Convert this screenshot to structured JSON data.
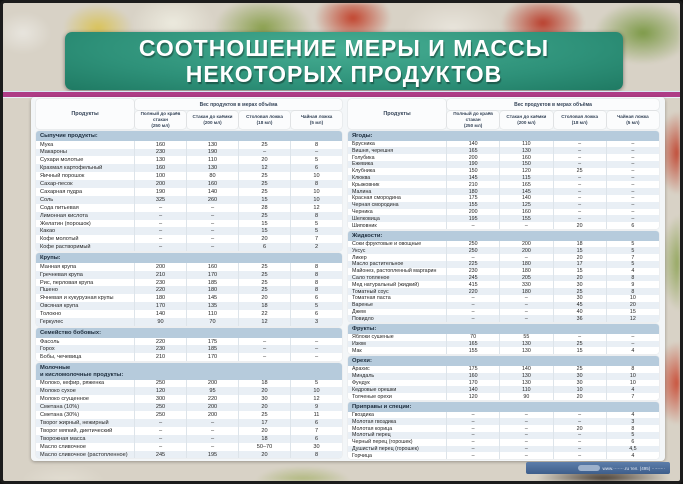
{
  "title": {
    "line1": "СООТНОШЕНИЕ МЕРЫ И МАССЫ",
    "line2": "НЕКОТОРЫХ ПРОДУКТОВ"
  },
  "header": {
    "products": "Продукты",
    "group": "Вес продуктов в мерах объёма",
    "columns": [
      {
        "label": "Полный до краёв стакан",
        "volume": "(250 мл)"
      },
      {
        "label": "Стакан до каёмки",
        "volume": "(200 мл)"
      },
      {
        "label": "Столовая ложка",
        "volume": "(18 мл)"
      },
      {
        "label": "Чайная ложка",
        "volume": "(5 мл)"
      }
    ]
  },
  "left_table": {
    "sections": [
      {
        "title": "Сыпучие продукты:",
        "rows": [
          {
            "name": "Мука",
            "values": [
              "160",
              "130",
              "25",
              "8"
            ]
          },
          {
            "name": "Макароны",
            "values": [
              "230",
              "190",
              "–",
              "–"
            ]
          },
          {
            "name": "Сухари молотые",
            "values": [
              "130",
              "110",
              "20",
              "5"
            ]
          },
          {
            "name": "Крахмал картофельный",
            "values": [
              "160",
              "130",
              "12",
              "6"
            ]
          },
          {
            "name": "Яичный порошок",
            "values": [
              "100",
              "80",
              "25",
              "10"
            ]
          },
          {
            "name": "Сахар-песок",
            "values": [
              "200",
              "160",
              "25",
              "8"
            ]
          },
          {
            "name": "Сахарная пудра",
            "values": [
              "190",
              "140",
              "25",
              "10"
            ]
          },
          {
            "name": "Соль",
            "values": [
              "325",
              "260",
              "15",
              "10"
            ]
          },
          {
            "name": "Сода питьевая",
            "values": [
              "–",
              "–",
              "28",
              "12"
            ]
          },
          {
            "name": "Лимонная кислота",
            "values": [
              "–",
              "–",
              "25",
              "8"
            ]
          },
          {
            "name": "Желатин (порошок)",
            "values": [
              "–",
              "–",
              "15",
              "5"
            ]
          },
          {
            "name": "Какао",
            "values": [
              "–",
              "–",
              "15",
              "5"
            ]
          },
          {
            "name": "Кофе молотый",
            "values": [
              "–",
              "–",
              "20",
              "7"
            ]
          },
          {
            "name": "Кофе растворимый",
            "values": [
              "–",
              "–",
              "6",
              "2"
            ]
          }
        ]
      },
      {
        "title": "Крупы:",
        "rows": [
          {
            "name": "Манная крупа",
            "values": [
              "200",
              "160",
              "25",
              "8"
            ]
          },
          {
            "name": "Гречневая крупа",
            "values": [
              "210",
              "170",
              "25",
              "8"
            ]
          },
          {
            "name": "Рис, перловая крупа",
            "values": [
              "230",
              "185",
              "25",
              "8"
            ]
          },
          {
            "name": "Пшено",
            "values": [
              "220",
              "180",
              "25",
              "8"
            ]
          },
          {
            "name": "Ячневая и кукурузная крупы",
            "values": [
              "180",
              "145",
              "20",
              "6"
            ]
          },
          {
            "name": "Овсяная крупа",
            "values": [
              "170",
              "135",
              "18",
              "5"
            ]
          },
          {
            "name": "Толокно",
            "values": [
              "140",
              "110",
              "22",
              "6"
            ]
          },
          {
            "name": "Геркулес",
            "values": [
              "90",
              "70",
              "12",
              "3"
            ]
          }
        ]
      },
      {
        "title": "Семейство бобовых:",
        "rows": [
          {
            "name": "Фасоль",
            "values": [
              "220",
              "175",
              "–",
              "–"
            ]
          },
          {
            "name": "Горох",
            "values": [
              "230",
              "185",
              "–",
              "–"
            ]
          },
          {
            "name": "Бобы, чечевица",
            "values": [
              "210",
              "170",
              "–",
              "–"
            ]
          }
        ]
      },
      {
        "title": "Молочные\nи кисломолочные продукты:",
        "rows": [
          {
            "name": "Молоко, кефир, ряженка",
            "values": [
              "250",
              "200",
              "18",
              "5"
            ]
          },
          {
            "name": "Молоко сухое",
            "values": [
              "120",
              "95",
              "20",
              "10"
            ]
          },
          {
            "name": "Молоко сгущенное",
            "values": [
              "300",
              "220",
              "30",
              "12"
            ]
          },
          {
            "name": "Сметана (10%)",
            "values": [
              "250",
              "200",
              "20",
              "9"
            ]
          },
          {
            "name": "Сметана (30%)",
            "values": [
              "250",
              "200",
              "25",
              "11"
            ]
          },
          {
            "name": "Творог жирный, нежирный",
            "values": [
              "–",
              "–",
              "17",
              "6"
            ]
          },
          {
            "name": "Творог мягкий, диетический",
            "values": [
              "–",
              "–",
              "20",
              "7"
            ]
          },
          {
            "name": "Творожная масса",
            "values": [
              "–",
              "–",
              "18",
              "6"
            ]
          },
          {
            "name": "Масло сливочное",
            "values": [
              "–",
              "–",
              "50–70",
              "30"
            ]
          },
          {
            "name": "Масло сливочное (растопленное)",
            "values": [
              "245",
              "195",
              "20",
              "8"
            ]
          }
        ]
      }
    ]
  },
  "right_table": {
    "sections": [
      {
        "title": "Ягоды:",
        "rows": [
          {
            "name": "Брусника",
            "values": [
              "140",
              "110",
              "–",
              "–"
            ]
          },
          {
            "name": "Вишня, черешня",
            "values": [
              "165",
              "130",
              "–",
              "–"
            ]
          },
          {
            "name": "Голубика",
            "values": [
              "200",
              "160",
              "–",
              "–"
            ]
          },
          {
            "name": "Ежевика",
            "values": [
              "190",
              "150",
              "–",
              "–"
            ]
          },
          {
            "name": "Клубника",
            "values": [
              "150",
              "120",
              "25",
              "–"
            ]
          },
          {
            "name": "Клюква",
            "values": [
              "145",
              "115",
              "–",
              "–"
            ]
          },
          {
            "name": "Крыжовник",
            "values": [
              "210",
              "165",
              "–",
              "–"
            ]
          },
          {
            "name": "Малина",
            "values": [
              "180",
              "145",
              "–",
              "–"
            ]
          },
          {
            "name": "Красная смородина",
            "values": [
              "175",
              "140",
              "–",
              "–"
            ]
          },
          {
            "name": "Черная смородина",
            "values": [
              "155",
              "125",
              "–",
              "–"
            ]
          },
          {
            "name": "Черника",
            "values": [
              "200",
              "160",
              "–",
              "–"
            ]
          },
          {
            "name": "Шелковица",
            "values": [
              "195",
              "155",
              "–",
              "–"
            ]
          },
          {
            "name": "Шиповник",
            "values": [
              "–",
              "–",
              "20",
              "6"
            ]
          }
        ]
      },
      {
        "title": "Жидкости:",
        "rows": [
          {
            "name": "Соки фруктовые и овощные",
            "values": [
              "250",
              "200",
              "18",
              "5"
            ]
          },
          {
            "name": "Уксус",
            "values": [
              "250",
              "200",
              "15",
              "5"
            ]
          },
          {
            "name": "Ликер",
            "values": [
              "–",
              "–",
              "20",
              "7"
            ]
          },
          {
            "name": "Масло растительное",
            "values": [
              "225",
              "180",
              "17",
              "5"
            ]
          },
          {
            "name": "Майонез, растопленный маргарин",
            "values": [
              "230",
              "180",
              "15",
              "4"
            ]
          },
          {
            "name": "Сало топленое",
            "values": [
              "245",
              "205",
              "20",
              "8"
            ]
          },
          {
            "name": "Мед натуральный (жидкий)",
            "values": [
              "415",
              "330",
              "30",
              "9"
            ]
          },
          {
            "name": "Томатный соус",
            "values": [
              "220",
              "180",
              "25",
              "8"
            ]
          },
          {
            "name": "Томатная паста",
            "values": [
              "–",
              "–",
              "30",
              "10"
            ]
          },
          {
            "name": "Варенье",
            "values": [
              "–",
              "–",
              "45",
              "20"
            ]
          },
          {
            "name": "Джем",
            "values": [
              "–",
              "–",
              "40",
              "15"
            ]
          },
          {
            "name": "Повидло",
            "values": [
              "–",
              "–",
              "36",
              "12"
            ]
          }
        ]
      },
      {
        "title": "Фрукты:",
        "rows": [
          {
            "name": "Яблоки сушеные",
            "values": [
              "70",
              "55",
              "–",
              "–"
            ]
          },
          {
            "name": "Изюм",
            "values": [
              "165",
              "130",
              "25",
              "–"
            ]
          },
          {
            "name": "Мак",
            "values": [
              "155",
              "130",
              "15",
              "4"
            ]
          }
        ]
      },
      {
        "title": "Орехи:",
        "rows": [
          {
            "name": "Арахис",
            "values": [
              "175",
              "140",
              "25",
              "8"
            ]
          },
          {
            "name": "Миндаль",
            "values": [
              "160",
              "130",
              "30",
              "10"
            ]
          },
          {
            "name": "Фундук",
            "values": [
              "170",
              "130",
              "30",
              "10"
            ]
          },
          {
            "name": "Кедровые орешки",
            "values": [
              "140",
              "110",
              "10",
              "4"
            ]
          },
          {
            "name": "Толченые орехи",
            "values": [
              "120",
              "90",
              "20",
              "7"
            ]
          }
        ]
      },
      {
        "title": "Приправы и специи:",
        "rows": [
          {
            "name": "Гвоздика",
            "values": [
              "–",
              "–",
              "–",
              "4"
            ]
          },
          {
            "name": "Молотая гвоздика",
            "values": [
              "–",
              "–",
              "–",
              "3"
            ]
          },
          {
            "name": "Молотая корица",
            "values": [
              "–",
              "–",
              "20",
              "8"
            ]
          },
          {
            "name": "Молотый перец",
            "values": [
              "–",
              "–",
              "–",
              "5"
            ]
          },
          {
            "name": "Черный перец (горошек)",
            "values": [
              "–",
              "–",
              "–",
              "6"
            ]
          },
          {
            "name": "Душистый перец (горошек)",
            "values": [
              "–",
              "–",
              "–",
              "4,5"
            ]
          },
          {
            "name": "Горчица",
            "values": [
              "–",
              "–",
              "–",
              "4"
            ]
          }
        ]
      }
    ]
  },
  "footer": {
    "text": "www.·······.ru   тел. (495) ···-··-··"
  },
  "colors": {
    "banner_teal": "#2e9179",
    "stripe_magenta": "#ae3c86",
    "section_header_blue": "#b6cbdc",
    "footer_blue": "#3e5e8b"
  }
}
